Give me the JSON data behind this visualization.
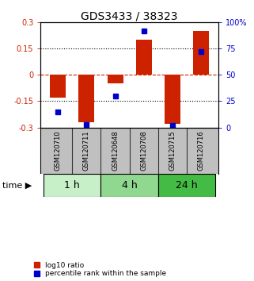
{
  "title": "GDS3433 / 38323",
  "samples": [
    "GSM120710",
    "GSM120711",
    "GSM120648",
    "GSM120708",
    "GSM120715",
    "GSM120716"
  ],
  "log10_ratio": [
    -0.13,
    -0.27,
    -0.05,
    0.2,
    -0.28,
    0.25
  ],
  "percentile_rank": [
    15,
    3,
    30,
    92,
    2,
    72
  ],
  "ylim_left": [
    -0.3,
    0.3
  ],
  "ylim_right": [
    0,
    100
  ],
  "yticks_left": [
    -0.3,
    -0.15,
    0,
    0.15,
    0.3
  ],
  "yticks_right": [
    0,
    25,
    50,
    75,
    100
  ],
  "ytick_labels_left": [
    "-0.3",
    "-0.15",
    "0",
    "0.15",
    "0.3"
  ],
  "ytick_labels_right": [
    "0",
    "25",
    "50",
    "75",
    "100%"
  ],
  "hlines_dotted": [
    -0.15,
    0.15
  ],
  "hline_dashed_red": 0,
  "bar_color": "#cc2200",
  "dot_color": "#0000cc",
  "time_groups": [
    {
      "label": "1 h",
      "samples": [
        0,
        1
      ],
      "color": "#c8f0c8"
    },
    {
      "label": "4 h",
      "samples": [
        2,
        3
      ],
      "color": "#90d890"
    },
    {
      "label": "24 h",
      "samples": [
        4,
        5
      ],
      "color": "#44bb44"
    }
  ],
  "time_label": "time",
  "legend_items": [
    {
      "color": "#cc2200",
      "label": "log10 ratio"
    },
    {
      "color": "#0000cc",
      "label": "percentile rank within the sample"
    }
  ],
  "bar_width": 0.55,
  "dot_size": 5,
  "background_color": "#ffffff",
  "plot_bg": "#ffffff",
  "title_fontsize": 10,
  "tick_fontsize": 7,
  "sample_label_fontsize": 6,
  "sample_bg_color": "#c0c0c0",
  "sample_border_color": "#333333",
  "time_label_fontsize": 8,
  "time_group_fontsize": 9,
  "legend_fontsize": 6.5
}
